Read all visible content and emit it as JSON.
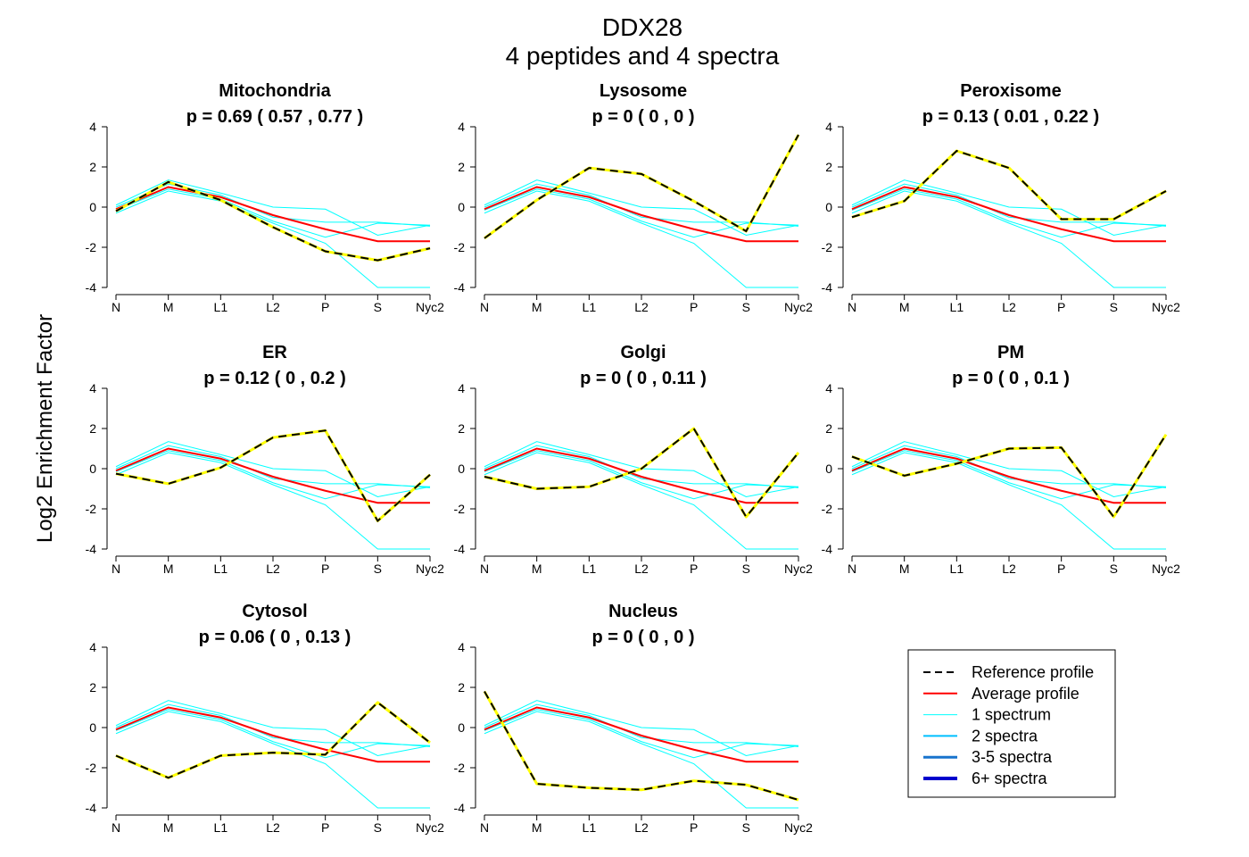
{
  "figure": {
    "title_line1": "DDX28",
    "title_line2": "4  peptides and  4  spectra",
    "ylabel": "Log2 Enrichment Factor"
  },
  "colors": {
    "reference_outer": "#000000",
    "reference_inner": "#ffff00",
    "average": "#ff0000",
    "spectrum_1": "#00ffff",
    "spectra_2": "#00bfff",
    "spectra_3_5": "#1874cd",
    "spectra_6_plus": "#0000cd"
  },
  "legend": {
    "items": [
      {
        "label": "Reference profile",
        "style": "dashed",
        "color": "#000000",
        "width": 2
      },
      {
        "label": "Average profile",
        "style": "solid",
        "color": "#ff0000",
        "width": 2
      },
      {
        "label": "1 spectrum",
        "style": "solid",
        "color": "#00ffff",
        "width": 1
      },
      {
        "label": "2 spectra",
        "style": "solid",
        "color": "#00bfff",
        "width": 2
      },
      {
        "label": "3-5 spectra",
        "style": "solid",
        "color": "#1874cd",
        "width": 3
      },
      {
        "label": "6+ spectra",
        "style": "solid",
        "color": "#0000cd",
        "width": 4
      }
    ]
  },
  "chart_data": [
    {
      "type": "line",
      "title": "Mitochondria",
      "subtitle": "p =  0.69  ( 0.57 ,  0.77 )",
      "x": [
        "N",
        "M",
        "L1",
        "L2",
        "P",
        "S",
        "Nyc2"
      ],
      "ylim": [
        -4,
        4
      ],
      "yticks": [
        4,
        2,
        0,
        -2,
        -4
      ],
      "reference": [
        -0.2,
        1.25,
        0.35,
        -1.0,
        -2.2,
        -2.65,
        -2.05
      ]
    },
    {
      "type": "line",
      "title": "Lysosome",
      "subtitle": "p =  0  ( 0 ,  0 )",
      "x": [
        "N",
        "M",
        "L1",
        "L2",
        "P",
        "S",
        "Nyc2"
      ],
      "ylim": [
        -4,
        4
      ],
      "yticks": [
        4,
        2,
        0,
        -2,
        -4
      ],
      "reference": [
        -1.55,
        0.35,
        1.95,
        1.65,
        0.3,
        -1.2,
        3.6
      ]
    },
    {
      "type": "line",
      "title": "Peroxisome",
      "subtitle": "p =  0.13  ( 0.01 ,  0.22 )",
      "x": [
        "N",
        "M",
        "L1",
        "L2",
        "P",
        "S",
        "Nyc2"
      ],
      "ylim": [
        -4,
        4
      ],
      "yticks": [
        4,
        2,
        0,
        -2,
        -4
      ],
      "reference": [
        -0.5,
        0.3,
        2.8,
        1.95,
        -0.6,
        -0.6,
        0.8
      ]
    },
    {
      "type": "line",
      "title": "ER",
      "subtitle": "p =  0.12  ( 0 ,  0.2 )",
      "x": [
        "N",
        "M",
        "L1",
        "L2",
        "P",
        "S",
        "Nyc2"
      ],
      "ylim": [
        -4,
        4
      ],
      "yticks": [
        4,
        2,
        0,
        -2,
        -4
      ],
      "reference": [
        -0.25,
        -0.75,
        0.05,
        1.55,
        1.9,
        -2.6,
        -0.3
      ]
    },
    {
      "type": "line",
      "title": "Golgi",
      "subtitle": "p =  0  ( 0 ,  0.11 )",
      "x": [
        "N",
        "M",
        "L1",
        "L2",
        "P",
        "S",
        "Nyc2"
      ],
      "ylim": [
        -4,
        4
      ],
      "yticks": [
        4,
        2,
        0,
        -2,
        -4
      ],
      "reference": [
        -0.4,
        -1.0,
        -0.9,
        0.0,
        2.0,
        -2.4,
        0.8
      ]
    },
    {
      "type": "line",
      "title": "PM",
      "subtitle": "p =  0  ( 0 ,  0.1 )",
      "x": [
        "N",
        "M",
        "L1",
        "L2",
        "P",
        "S",
        "Nyc2"
      ],
      "ylim": [
        -4,
        4
      ],
      "yticks": [
        4,
        2,
        0,
        -2,
        -4
      ],
      "reference": [
        0.6,
        -0.35,
        0.25,
        1.0,
        1.05,
        -2.4,
        1.7
      ]
    },
    {
      "type": "line",
      "title": "Cytosol",
      "subtitle": "p =  0.06  ( 0 ,  0.13 )",
      "x": [
        "N",
        "M",
        "L1",
        "L2",
        "P",
        "S",
        "Nyc2"
      ],
      "ylim": [
        -4,
        4
      ],
      "yticks": [
        4,
        2,
        0,
        -2,
        -4
      ],
      "reference": [
        -1.4,
        -2.5,
        -1.4,
        -1.25,
        -1.35,
        1.25,
        -0.75
      ]
    },
    {
      "type": "line",
      "title": "Nucleus",
      "subtitle": "p =  0  ( 0 ,  0 )",
      "x": [
        "N",
        "M",
        "L1",
        "L2",
        "P",
        "S",
        "Nyc2"
      ],
      "ylim": [
        -4,
        4
      ],
      "yticks": [
        4,
        2,
        0,
        -2,
        -4
      ],
      "reference": [
        1.8,
        -2.8,
        -3.0,
        -3.1,
        -2.65,
        -2.85,
        -3.6
      ]
    }
  ],
  "profiles": {
    "average": [
      -0.1,
      1.0,
      0.5,
      -0.4,
      -1.1,
      -1.7,
      -1.7
    ],
    "spectra": [
      [
        0.1,
        1.35,
        0.7,
        0.0,
        -0.1,
        -1.4,
        -0.9
      ],
      [
        -0.3,
        0.8,
        0.3,
        -0.8,
        -1.8,
        -4.0,
        -4.0
      ],
      [
        0.0,
        1.15,
        0.6,
        -0.5,
        -0.75,
        -0.75,
        -0.95
      ],
      [
        -0.15,
        0.9,
        0.4,
        -0.7,
        -1.5,
        -0.8,
        -0.9
      ]
    ]
  }
}
